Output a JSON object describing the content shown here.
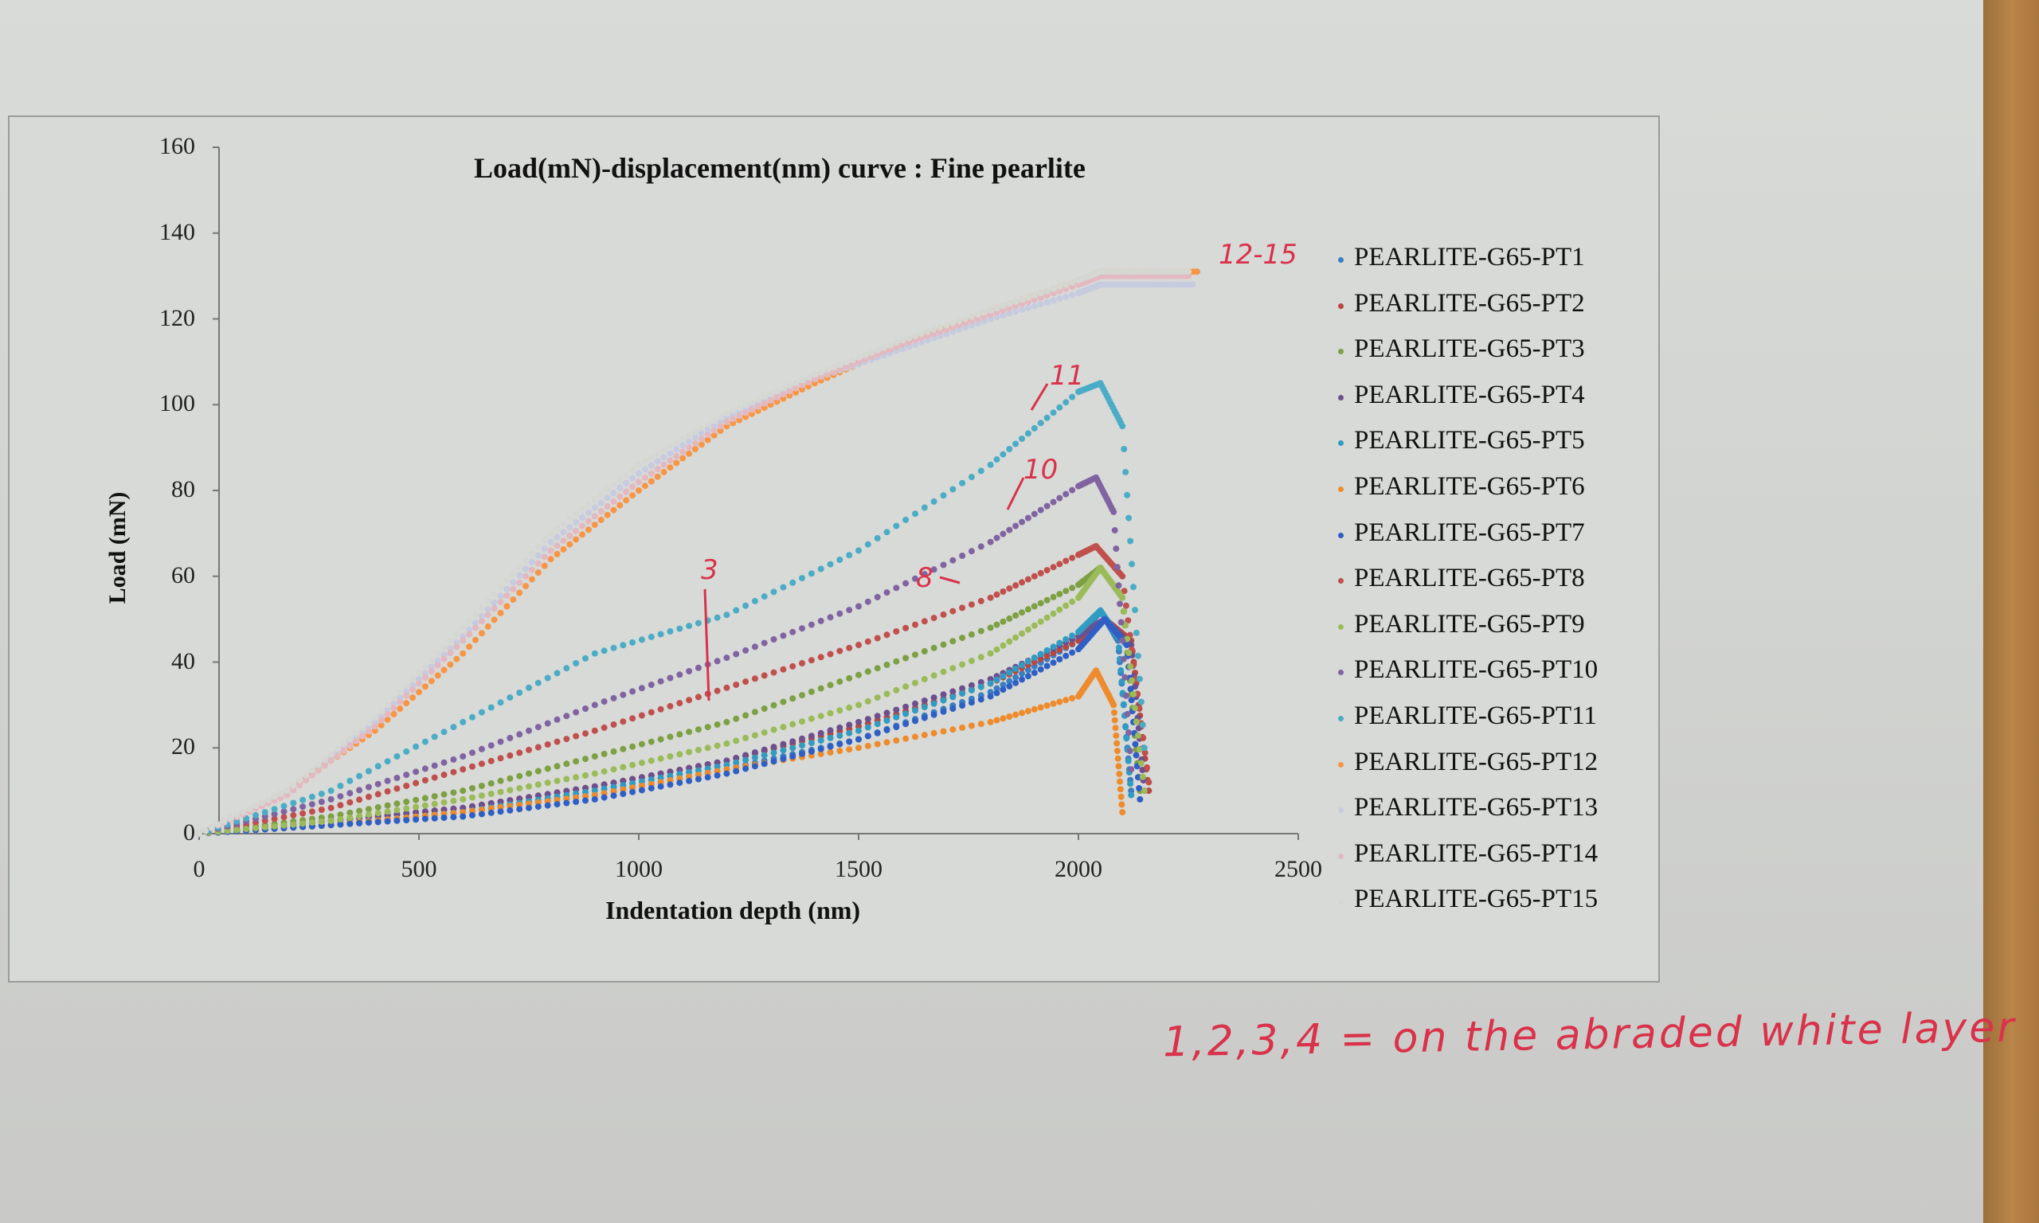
{
  "chart_data": {
    "type": "scatter",
    "title": "Load(mN)-displacement(nm) curve : Fine pearlite",
    "xlabel": "Indentation depth (nm)",
    "ylabel": "Load (mN)",
    "xlim": [
      0,
      2500
    ],
    "ylim": [
      0,
      160
    ],
    "xticks": [
      "0",
      "500",
      "1000",
      "1500",
      "2000",
      "2500"
    ],
    "yticks": [
      "0",
      "20",
      "40",
      "60",
      "80",
      "100",
      "120",
      "140",
      "160"
    ],
    "grid": false,
    "legend_position": "right",
    "series": [
      {
        "name": "PEARLITE-G65-PT1",
        "color": "#3a7fc2",
        "x": [
          0,
          300,
          600,
          900,
          1200,
          1500,
          1800,
          2000,
          2050,
          2090,
          2120
        ],
        "y": [
          0,
          2,
          5,
          9,
          15,
          22,
          33,
          45,
          52,
          45,
          10
        ]
      },
      {
        "name": "PEARLITE-G65-PT2",
        "color": "#b8483f",
        "x": [
          0,
          300,
          600,
          900,
          1200,
          1500,
          1800,
          2000,
          2060,
          2120,
          2160
        ],
        "y": [
          0,
          3,
          6,
          11,
          17,
          25,
          35,
          45,
          50,
          45,
          10
        ]
      },
      {
        "name": "PEARLITE-G65-PT3",
        "color": "#7da043",
        "x": [
          0,
          300,
          600,
          900,
          1200,
          1500,
          1800,
          2000,
          2050,
          2100,
          2140
        ],
        "y": [
          0,
          4,
          10,
          18,
          26,
          37,
          48,
          58,
          62,
          55,
          10
        ]
      },
      {
        "name": "PEARLITE-G65-PT4",
        "color": "#6e4f8e",
        "x": [
          0,
          300,
          600,
          900,
          1200,
          1500,
          1800,
          2000,
          2060,
          2120,
          2150
        ],
        "y": [
          0,
          3,
          6,
          11,
          17,
          26,
          36,
          46,
          50,
          44,
          10
        ]
      },
      {
        "name": "PEARLITE-G65-PT5",
        "color": "#2f9cc4",
        "x": [
          0,
          300,
          600,
          900,
          1200,
          1500,
          1800,
          2000,
          2050,
          2090,
          2120
        ],
        "y": [
          0,
          2,
          5,
          10,
          16,
          24,
          35,
          47,
          52,
          46,
          9
        ]
      },
      {
        "name": "PEARLITE-G65-PT6",
        "color": "#ee8b2c",
        "x": [
          0,
          300,
          600,
          900,
          1200,
          1500,
          1800,
          2000,
          2040,
          2080,
          2100
        ],
        "y": [
          0,
          2,
          5,
          9,
          15,
          20,
          26,
          32,
          38,
          30,
          5
        ]
      },
      {
        "name": "PEARLITE-G65-PT7",
        "color": "#2f5fc4",
        "x": [
          0,
          300,
          600,
          900,
          1200,
          1500,
          1800,
          2000,
          2060,
          2110,
          2140
        ],
        "y": [
          0,
          2,
          4,
          8,
          14,
          22,
          32,
          43,
          50,
          44,
          8
        ]
      },
      {
        "name": "PEARLITE-G65-PT8",
        "color": "#c0504d",
        "x": [
          0,
          300,
          600,
          900,
          1200,
          1500,
          1800,
          2000,
          2040,
          2100,
          2160
        ],
        "y": [
          0,
          6,
          15,
          24,
          34,
          44,
          55,
          65,
          67,
          60,
          12
        ]
      },
      {
        "name": "PEARLITE-G65-PT9",
        "color": "#9bbb59",
        "x": [
          0,
          300,
          600,
          900,
          1200,
          1500,
          1800,
          2000,
          2050,
          2100,
          2150
        ],
        "y": [
          0,
          3,
          8,
          14,
          21,
          30,
          42,
          55,
          62,
          55,
          10
        ]
      },
      {
        "name": "PEARLITE-G65-PT10",
        "color": "#8064a2",
        "x": [
          0,
          300,
          600,
          900,
          1200,
          1500,
          1800,
          2000,
          2040,
          2080,
          2120
        ],
        "y": [
          0,
          8,
          18,
          30,
          41,
          53,
          68,
          81,
          83,
          75,
          15
        ]
      },
      {
        "name": "PEARLITE-G65-PT11",
        "color": "#4bacc6",
        "x": [
          0,
          300,
          600,
          900,
          1200,
          1500,
          1800,
          2000,
          2050,
          2100,
          2150
        ],
        "y": [
          0,
          10,
          26,
          42,
          51,
          66,
          86,
          103,
          105,
          95,
          20
        ]
      },
      {
        "name": "PEARLITE-G65-PT12",
        "color": "#f79646",
        "x": [
          0,
          200,
          400,
          600,
          800,
          1000,
          1200,
          1400,
          1600,
          1800,
          2000,
          2050,
          2150,
          2270
        ],
        "y": [
          0,
          10,
          24,
          42,
          64,
          80,
          95,
          105,
          114,
          122,
          129,
          131,
          131,
          131
        ]
      },
      {
        "name": "PEARLITE-G65-PT13",
        "color": "#c6cbe0",
        "x": [
          0,
          200,
          400,
          600,
          800,
          1000,
          1200,
          1400,
          1600,
          1800,
          2000,
          2050,
          2150,
          2260
        ],
        "y": [
          0,
          10,
          26,
          46,
          68,
          84,
          97,
          106,
          113,
          120,
          126,
          128,
          128,
          128
        ]
      },
      {
        "name": "PEARLITE-G65-PT14",
        "color": "#e3b8c0",
        "x": [
          0,
          200,
          400,
          600,
          800,
          1000,
          1200,
          1400,
          1600,
          1800,
          2000,
          2050,
          2150,
          2250
        ],
        "y": [
          0,
          9,
          25,
          45,
          66,
          82,
          96,
          106,
          114,
          121,
          128,
          130,
          130,
          130
        ]
      },
      {
        "name": "PEARLITE-G65-PT15",
        "color": "#d5d7d3",
        "x": [
          0,
          200,
          400,
          600,
          800,
          1000,
          1200,
          1400,
          1600,
          1800,
          2000,
          2050,
          2150,
          2250
        ],
        "y": [
          0,
          10,
          27,
          48,
          70,
          86,
          98,
          107,
          115,
          122,
          129,
          131,
          131,
          131
        ]
      }
    ]
  },
  "handwriting": {
    "note": "1,2,3,4 = on the abraded white layer",
    "marks": {
      "range": "12-15",
      "m11": "11",
      "m10": "10",
      "m8": "8",
      "m3": "3"
    }
  }
}
